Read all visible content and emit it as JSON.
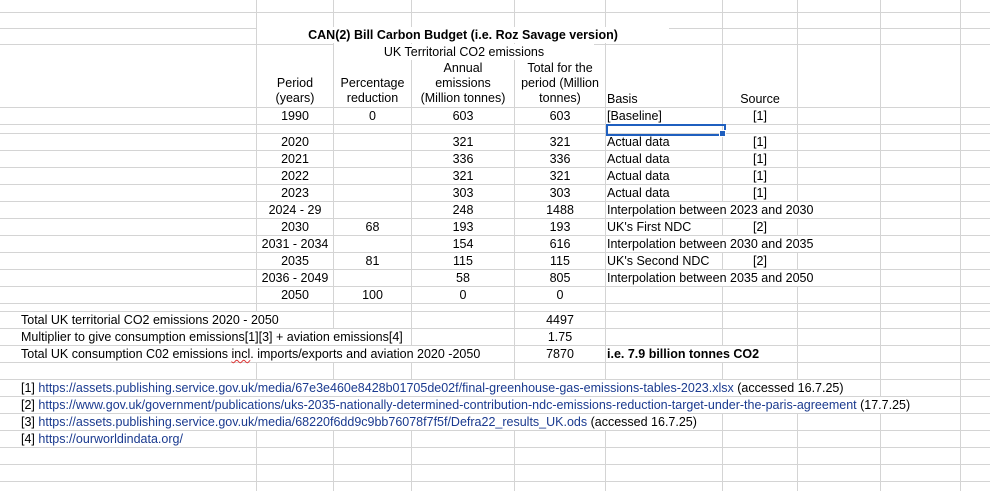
{
  "title": "CAN(2) Bill Carbon Budget (i.e. Roz Savage version)",
  "subtitle": "UK Territorial CO2 emissions",
  "headers": {
    "period": [
      "Period",
      "(years)"
    ],
    "pct": [
      "Percentage",
      "reduction"
    ],
    "annual": [
      "Annual",
      "emissions",
      "(Million tonnes)"
    ],
    "total": [
      "Total for the",
      "period (Million",
      "tonnes)"
    ],
    "basis": "Basis",
    "source": "Source"
  },
  "rows": [
    {
      "period": "1990",
      "pct": "0",
      "annual": "603",
      "total": "603",
      "basis": "[Baseline]",
      "source": "[1]"
    },
    {
      "period": "",
      "pct": "",
      "annual": "",
      "total": "",
      "basis": "",
      "source": ""
    },
    {
      "period": "2020",
      "pct": "",
      "annual": "321",
      "total": "321",
      "basis": "Actual data",
      "source": "[1]"
    },
    {
      "period": "2021",
      "pct": "",
      "annual": "336",
      "total": "336",
      "basis": "Actual data",
      "source": "[1]"
    },
    {
      "period": "2022",
      "pct": "",
      "annual": "321",
      "total": "321",
      "basis": "Actual data",
      "source": "[1]"
    },
    {
      "period": "2023",
      "pct": "",
      "annual": "303",
      "total": "303",
      "basis": "Actual data",
      "source": "[1]"
    },
    {
      "period": "2024 - 29",
      "pct": "",
      "annual": "248",
      "total": "1488",
      "basis": "Interpolation between 2023 and 2030",
      "source": ""
    },
    {
      "period": "2030",
      "pct": "68",
      "annual": "193",
      "total": "193",
      "basis": "UK's First NDC",
      "source": "[2]"
    },
    {
      "period": "2031 - 2034",
      "pct": "",
      "annual": "154",
      "total": "616",
      "basis": "Interpolation between 2030 and 2035",
      "source": ""
    },
    {
      "period": "2035",
      "pct": "81",
      "annual": "115",
      "total": "115",
      "basis": "UK's Second NDC",
      "source": "[2]"
    },
    {
      "period": "2036 - 2049",
      "pct": "",
      "annual": "58",
      "total": "805",
      "basis": "Interpolation between 2035 and 2050",
      "source": ""
    },
    {
      "period": "2050",
      "pct": "100",
      "annual": "0",
      "total": "0",
      "basis": "",
      "source": ""
    }
  ],
  "summary": [
    {
      "label": "Total UK territorial CO2 emissions 2020 - 2050",
      "value": "4497",
      "note": ""
    },
    {
      "label": "Multiplier to give consumption emissions[1][3] + aviation emissions[4]",
      "value": "1.75",
      "note": ""
    },
    {
      "label": "Total UK consumption C02 emissions incl. imports/exports and aviation 2020 -2050",
      "value": "7870",
      "note": "i.e. 7.9 billion tonnes CO2"
    }
  ],
  "refs": [
    {
      "tag": "[1]",
      "url": "https://assets.publishing.service.gov.uk/media/67e3e460e8428b01705de02f/final-greenhouse-gas-emissions-tables-2023.xlsx",
      "suffix": "(accessed 16.7.25)"
    },
    {
      "tag": "[2]",
      "url": "https://www.gov.uk/government/publications/uks-2035-nationally-determined-contribution-ndc-emissions-reduction-target-under-the-paris-agreement",
      "suffix": "(17.7.25)"
    },
    {
      "tag": "[3]",
      "url": "https://assets.publishing.service.gov.uk/media/68220f6dd9c9bb76078f7f5f/Defra22_results_UK.ods",
      "suffix": " (accessed 16.7.25)"
    },
    {
      "tag": "[4]",
      "url": "https://ourworldindata.org/",
      "suffix": ""
    }
  ],
  "colors": {
    "gridline": "#d4d4d4",
    "selection": "#1f5fbf",
    "link": "#1a3a8f"
  }
}
